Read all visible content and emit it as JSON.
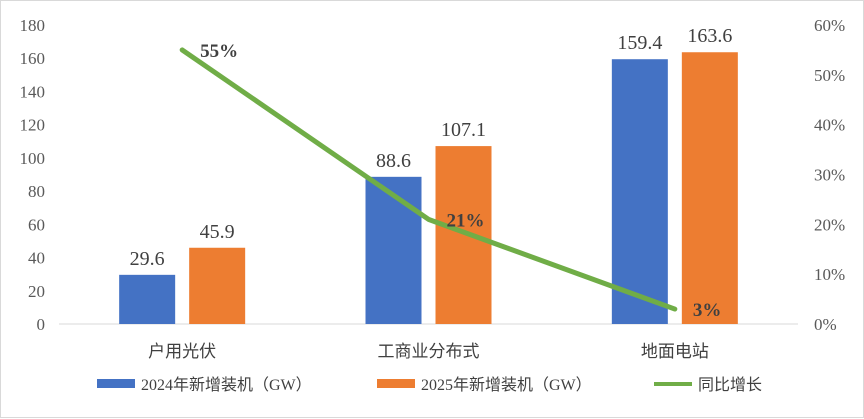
{
  "chart_data": {
    "type": "bar",
    "categories": [
      "户用光伏",
      "工商业分布式",
      "地面电站"
    ],
    "series": [
      {
        "name": "2024年新增装机（GW）",
        "type": "bar",
        "axis": "left",
        "color": "#4472C4",
        "values": [
          29.6,
          88.6,
          159.4
        ],
        "value_labels": [
          "29.6",
          "88.6",
          "159.4"
        ]
      },
      {
        "name": "2025年新增装机（GW）",
        "type": "bar",
        "axis": "left",
        "color": "#ED7D31",
        "values": [
          45.9,
          107.1,
          163.6
        ],
        "value_labels": [
          "45.9",
          "107.1",
          "163.6"
        ]
      },
      {
        "name": "同比增长",
        "type": "line",
        "axis": "right",
        "color": "#70AD47",
        "values": [
          0.55,
          0.21,
          0.03
        ],
        "value_labels": [
          "55%",
          "21%",
          "3%"
        ]
      }
    ],
    "ylim": [
      0,
      180
    ],
    "y_ticks": [
      "0",
      "20",
      "40",
      "60",
      "80",
      "100",
      "120",
      "140",
      "160",
      "180"
    ],
    "y2lim": [
      0,
      0.6
    ],
    "y2_ticks": [
      "0%",
      "10%",
      "20%",
      "30%",
      "40%",
      "50%",
      "60%"
    ],
    "grid": false,
    "legend_position": "bottom"
  }
}
